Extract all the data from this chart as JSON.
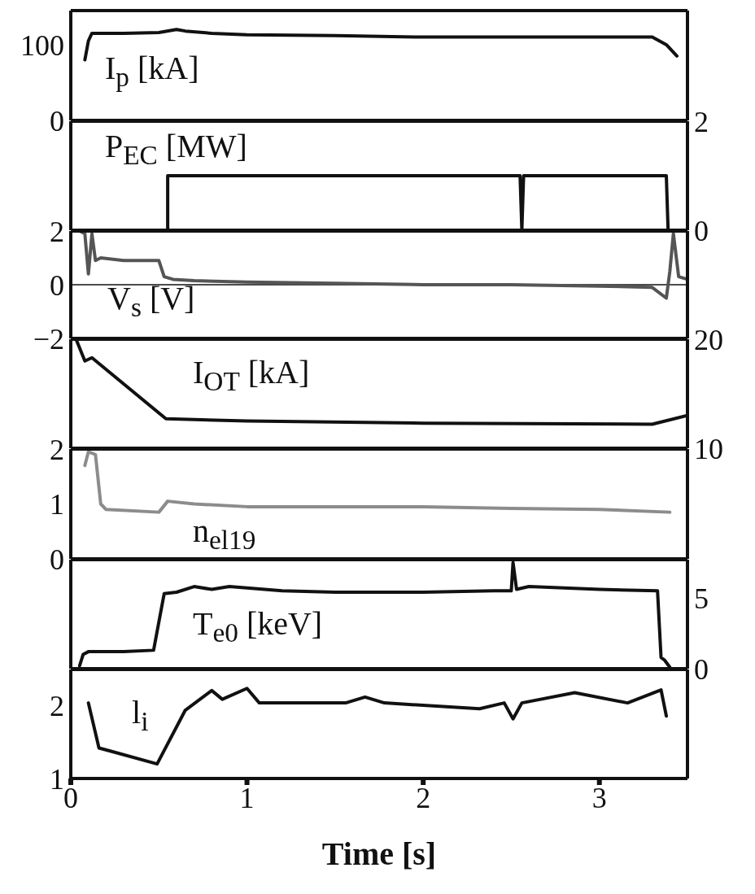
{
  "chart_data": [
    {
      "type": "line",
      "title": "I$_{p}$ [kA]",
      "x": [
        0.08,
        0.1,
        0.12,
        0.3,
        0.5,
        0.6,
        0.65,
        0.8,
        1,
        1.5,
        2,
        2.5,
        3,
        3.3,
        3.38,
        3.44
      ],
      "series": [
        {
          "color": "#111111",
          "values": [
            80,
            105,
            115,
            115,
            116,
            120,
            118,
            115,
            113,
            112,
            110,
            110,
            110,
            110,
            100,
            85
          ]
        }
      ],
      "xlim": [
        0,
        3.5
      ],
      "xticks": [
        0,
        1,
        2,
        3
      ],
      "ylim": [
        0,
        145
      ],
      "yticks": [
        0,
        100
      ],
      "tick_labels": "y",
      "legend": false,
      "grid": false,
      "marker": "none",
      "line_style": "solid"
    },
    {
      "type": "line",
      "title": "P$_{EC}$ [MW]",
      "x": [
        0,
        0.55,
        0.55,
        2.55,
        2.56,
        2.57,
        3.38,
        3.39,
        3.4
      ],
      "series": [
        {
          "color": "#111111",
          "axis": "y2",
          "values": [
            0,
            0,
            1,
            1,
            0,
            1,
            1,
            0,
            0
          ]
        }
      ],
      "xlim": [
        0,
        3.5
      ],
      "xticks": [
        0,
        1,
        2,
        3
      ],
      "y2lim": [
        0,
        2
      ],
      "y2ticks": [
        0,
        2
      ],
      "tick_labels": "y",
      "legend": false,
      "grid": false,
      "marker": "none",
      "line_style": "solid"
    },
    {
      "type": "line",
      "title": "V$_{s}$ [V]",
      "x": [
        0.05,
        0.08,
        0.1,
        0.12,
        0.14,
        0.17,
        0.3,
        0.5,
        0.53,
        0.58,
        0.7,
        1,
        1.5,
        2,
        2.5,
        3,
        3.3,
        3.38,
        3.4,
        3.42,
        3.45,
        3.5
      ],
      "series": [
        {
          "color": "#555555",
          "values": [
            2.0,
            1.9,
            0.4,
            1.9,
            0.9,
            1.0,
            0.9,
            0.9,
            0.3,
            0.2,
            0.15,
            0.1,
            0.05,
            0.0,
            0.0,
            -0.05,
            -0.1,
            -0.5,
            0.5,
            1.9,
            0.3,
            0.2
          ]
        }
      ],
      "xlim": [
        0,
        3.5
      ],
      "xticks": [
        0,
        1,
        2,
        3
      ],
      "ylim": [
        -2,
        2
      ],
      "yticks": [
        {
          "value": -2,
          "label": "−2"
        },
        0,
        2
      ],
      "ref_lines": [
        {
          "axis": "y",
          "value": 0
        }
      ],
      "tick_labels": "y",
      "legend": false,
      "grid": false,
      "marker": "none",
      "line_style": "solid"
    },
    {
      "type": "line",
      "title": "I$_{OT}$ [kA]",
      "x": [
        0.03,
        0.08,
        0.12,
        0.54,
        1,
        2,
        3.3,
        3.5
      ],
      "series": [
        {
          "color": "#111111",
          "axis": "y2",
          "values": [
            20,
            18.0,
            18.3,
            12.7,
            12.5,
            12.3,
            12.2,
            13.0
          ]
        }
      ],
      "xlim": [
        0,
        3.5
      ],
      "xticks": [
        0,
        1,
        2,
        3
      ],
      "y2lim": [
        10,
        20
      ],
      "y2ticks": [
        10,
        20
      ],
      "tick_labels": "y",
      "legend": false,
      "grid": false,
      "marker": "none",
      "line_style": "solid"
    },
    {
      "type": "line",
      "title": "n$_{el19}$",
      "x": [
        0.08,
        0.1,
        0.14,
        0.17,
        0.2,
        0.5,
        0.55,
        0.7,
        1,
        1.5,
        2,
        2.5,
        3,
        3.4
      ],
      "series": [
        {
          "color": "#8c8c8c",
          "values": [
            1.7,
            1.95,
            1.9,
            1.0,
            0.9,
            0.85,
            1.05,
            1.0,
            0.95,
            0.95,
            0.95,
            0.92,
            0.9,
            0.85
          ]
        }
      ],
      "xlim": [
        0,
        3.5
      ],
      "xticks": [
        0,
        1,
        2,
        3
      ],
      "ylim": [
        0,
        2
      ],
      "yticks": [
        0,
        1,
        2
      ],
      "tick_labels": "y",
      "legend": false,
      "grid": false,
      "marker": "none",
      "line_style": "solid"
    },
    {
      "type": "line",
      "title": "T$_{e0}$ [keV]",
      "x": [
        0.05,
        0.07,
        0.1,
        0.3,
        0.47,
        0.53,
        0.6,
        0.7,
        0.8,
        0.9,
        1,
        1.2,
        1.5,
        2,
        2.4,
        2.5,
        2.51,
        2.53,
        2.6,
        3,
        3.33,
        3.35,
        3.37,
        3.4
      ],
      "series": [
        {
          "color": "#111111",
          "axis": "y2",
          "values": [
            0.2,
            1.0,
            1.2,
            1.2,
            1.3,
            5.3,
            5.4,
            5.8,
            5.6,
            5.8,
            5.7,
            5.5,
            5.4,
            5.4,
            5.5,
            5.5,
            7.5,
            5.6,
            5.8,
            5.6,
            5.5,
            0.8,
            0.6,
            0.1
          ]
        }
      ],
      "xlim": [
        0,
        3.5
      ],
      "xticks": [
        0,
        1,
        2,
        3
      ],
      "y2lim": [
        0,
        7.7
      ],
      "y2ticks": [
        0,
        5
      ],
      "tick_labels": "y",
      "legend": false,
      "grid": false,
      "marker": "none",
      "line_style": "solid"
    },
    {
      "type": "line",
      "title": "l$_{i}$",
      "xlabel": "Time [s]",
      "x": [
        0.1,
        0.16,
        0.22,
        0.49,
        0.65,
        0.8,
        0.86,
        1.0,
        1.07,
        1.56,
        1.67,
        1.78,
        2.32,
        2.46,
        2.51,
        2.56,
        2.86,
        3.16,
        3.35,
        3.38
      ],
      "series": [
        {
          "color": "#111111",
          "values": [
            2.04,
            1.42,
            1.38,
            1.2,
            1.94,
            2.21,
            2.09,
            2.24,
            2.04,
            2.04,
            2.12,
            2.04,
            1.96,
            2.04,
            1.82,
            2.04,
            2.18,
            2.04,
            2.22,
            1.86
          ]
        }
      ],
      "xlim": [
        0,
        3.5
      ],
      "xticks": [
        0,
        1,
        2,
        3
      ],
      "ylim": [
        1,
        2.5
      ],
      "yticks": [
        1,
        2
      ],
      "legend": false,
      "grid": false,
      "marker": "none",
      "line_style": "solid"
    }
  ]
}
